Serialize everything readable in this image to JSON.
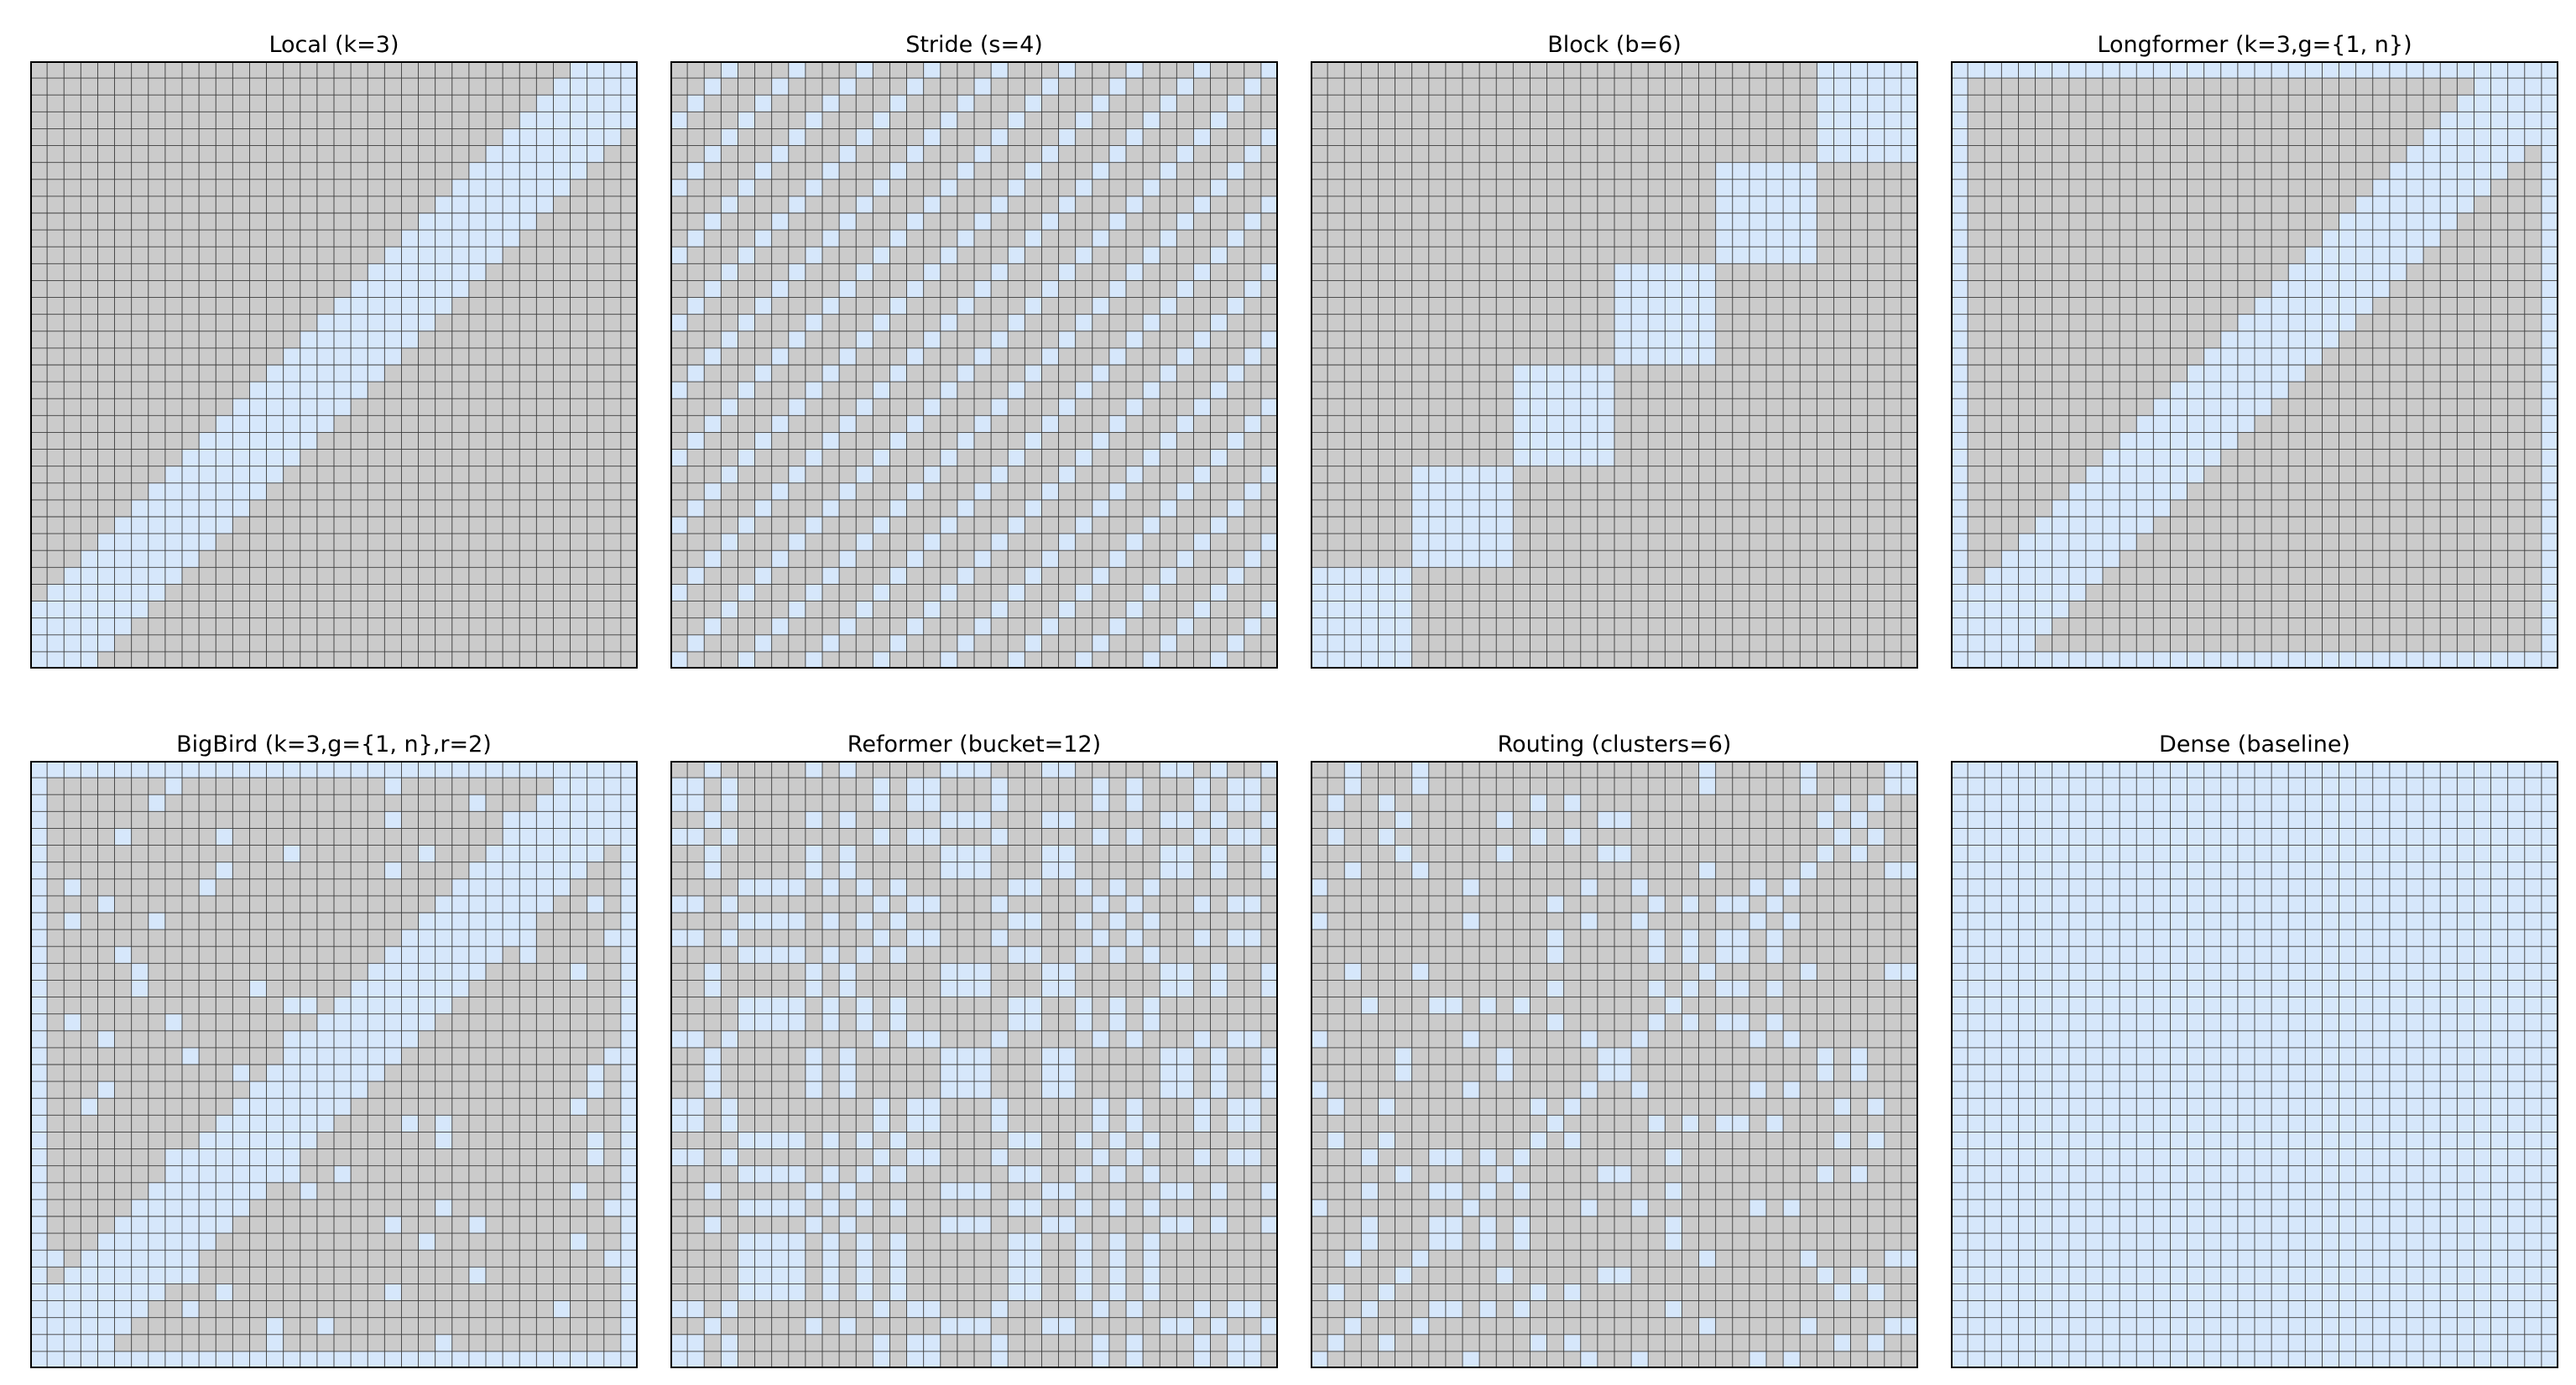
{
  "chart_data": [
    {
      "type": "heatmap",
      "title": "Local (k=3)",
      "pattern": "local",
      "n": 36,
      "params": {
        "k": 3
      }
    },
    {
      "type": "heatmap",
      "title": "Stride (s=4)",
      "pattern": "stride",
      "n": 36,
      "params": {
        "s": 4
      }
    },
    {
      "type": "heatmap",
      "title": "Block (b=6)",
      "pattern": "block",
      "n": 36,
      "params": {
        "b": 6
      }
    },
    {
      "type": "heatmap",
      "title": "Longformer (k=3,g={1, n})",
      "pattern": "longformer",
      "n": 36,
      "params": {
        "k": 3,
        "g": [
          1,
          36
        ]
      }
    },
    {
      "type": "heatmap",
      "title": "BigBird (k=3,g={1, n},r=2)",
      "pattern": "bigbird",
      "n": 36,
      "params": {
        "k": 3,
        "g": [
          1,
          36
        ],
        "r": 2
      }
    },
    {
      "type": "heatmap",
      "title": "Reformer (bucket=12)",
      "pattern": "reformer",
      "n": 36,
      "params": {
        "bucket": 12
      }
    },
    {
      "type": "heatmap",
      "title": "Routing (clusters=6)",
      "pattern": "routing",
      "n": 36,
      "params": {
        "clusters": 6
      }
    },
    {
      "type": "heatmap",
      "title": "Dense (baseline)",
      "pattern": "dense",
      "n": 36,
      "params": {}
    }
  ],
  "colors": {
    "attend": "#d6e7fb",
    "masked": "#cbcbcb",
    "grid": "#3c3c3c",
    "frame": "#000000"
  }
}
